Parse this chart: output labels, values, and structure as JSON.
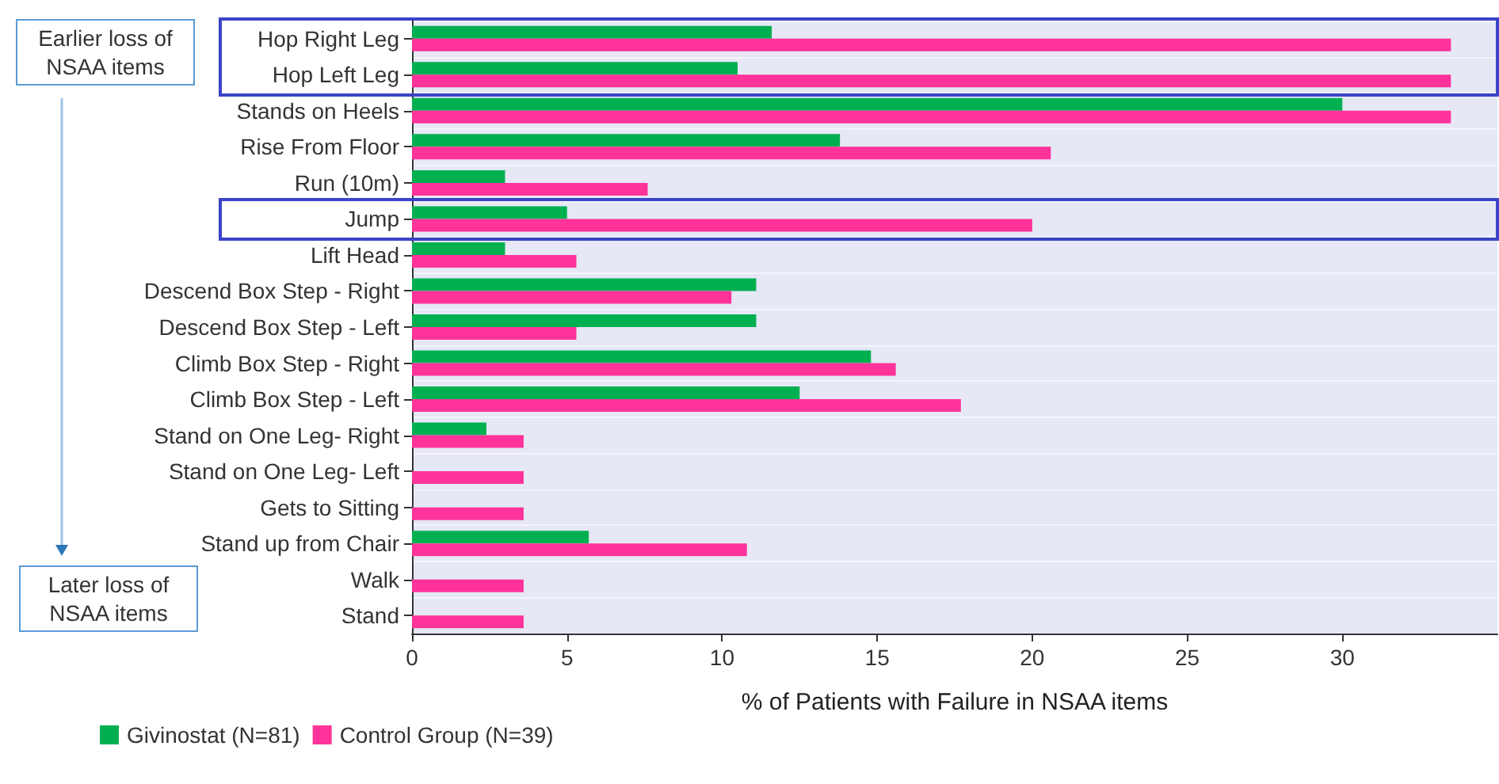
{
  "chart_data": {
    "type": "bar",
    "orientation": "horizontal",
    "categories": [
      "Hop Right Leg",
      "Hop Left Leg",
      "Stands on Heels",
      "Rise From Floor",
      "Run (10m)",
      "Jump",
      "Lift Head",
      "Descend Box Step - Right",
      "Descend Box Step - Left",
      "Climb Box Step - Right",
      "Climb Box Step - Left",
      "Stand on One Leg- Right",
      "Stand on One Leg- Left",
      "Gets to Sitting",
      "Stand up from Chair",
      "Walk",
      "Stand"
    ],
    "series": [
      {
        "name": "Givinostat (N=81)",
        "color": "#00b050",
        "values": [
          11.6,
          10.5,
          30.0,
          13.8,
          3.0,
          5.0,
          3.0,
          11.1,
          11.1,
          14.8,
          12.5,
          2.4,
          null,
          null,
          5.7,
          null,
          null
        ]
      },
      {
        "name": "Control Group (N=39)",
        "color": "#ff3399",
        "values": [
          33.5,
          33.5,
          33.5,
          20.6,
          7.6,
          20.0,
          5.3,
          10.3,
          5.3,
          15.6,
          17.7,
          3.6,
          3.6,
          3.6,
          10.8,
          3.6,
          3.6
        ]
      }
    ],
    "xlabel": "% of Patients with Failure in NSAA items",
    "xlim": [
      0,
      35
    ],
    "xticks": [
      0,
      5,
      10,
      15,
      20,
      25,
      30
    ],
    "grid": "y",
    "legend": "bottom left",
    "annotations": [
      "Earlier loss of NSAA items",
      "Later loss of NSAA items"
    ]
  }
}
